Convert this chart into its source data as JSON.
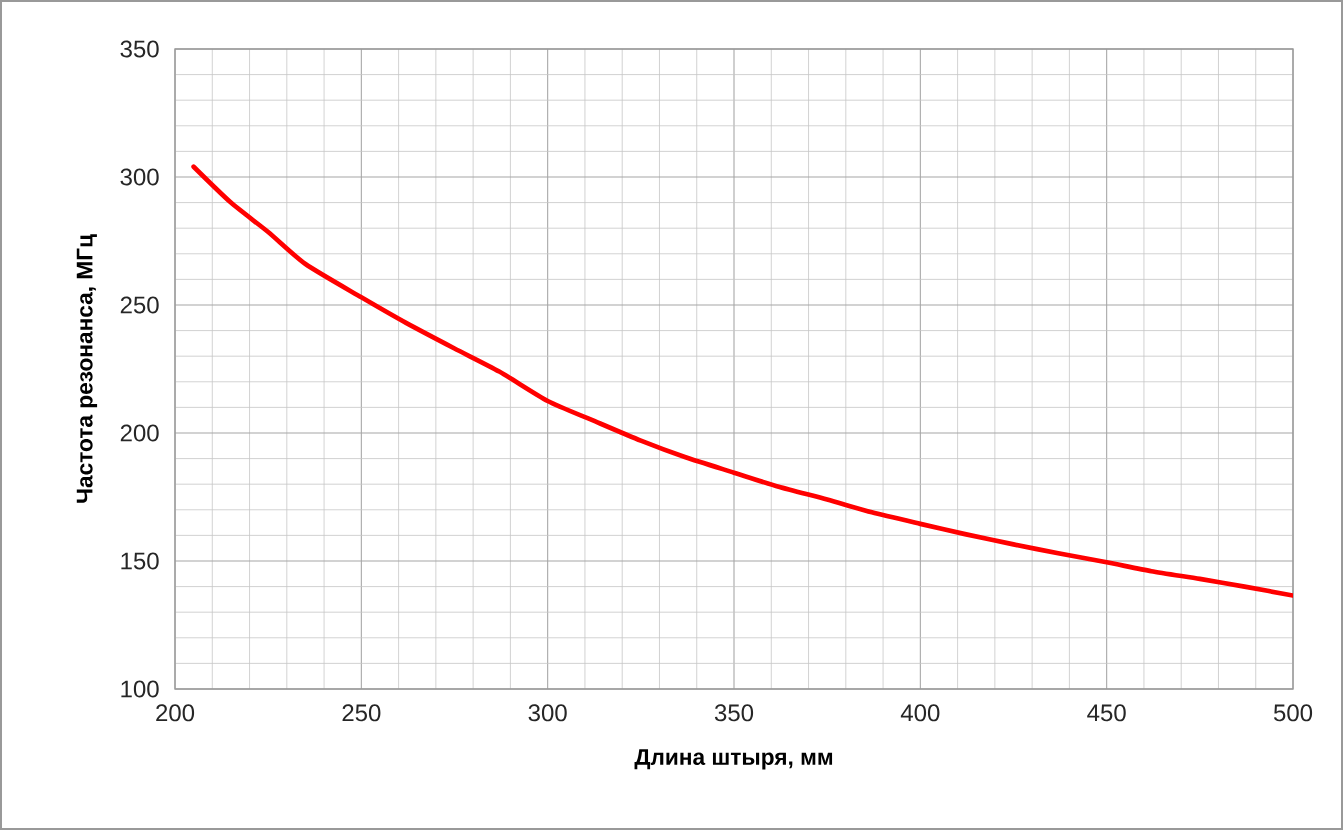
{
  "chart_data": {
    "type": "line",
    "xlabel": "Длина штыря, мм",
    "ylabel": "Частота резонанса, МГц",
    "x": [
      205,
      215,
      225,
      235,
      250,
      262,
      275,
      287,
      300,
      312,
      325,
      337,
      350,
      362,
      375,
      387,
      400,
      412,
      425,
      437,
      450,
      462,
      475,
      487,
      500
    ],
    "series": [
      {
        "color": "#ff0000",
        "values": [
          304,
          290,
          278.5,
          266,
          253,
          243,
          233,
          224,
          212.5,
          205,
          197,
          190.5,
          184.5,
          179,
          174,
          169,
          164.5,
          160.5,
          156.5,
          153,
          149.5,
          146,
          143,
          140,
          136.5
        ]
      }
    ],
    "xlim": [
      200,
      500
    ],
    "ylim": [
      100,
      350
    ],
    "xticks": [
      200,
      250,
      300,
      350,
      400,
      450,
      500
    ],
    "yticks": [
      100,
      150,
      200,
      250,
      300,
      350
    ],
    "grid": true,
    "marker": "none",
    "line_style": "solid"
  }
}
